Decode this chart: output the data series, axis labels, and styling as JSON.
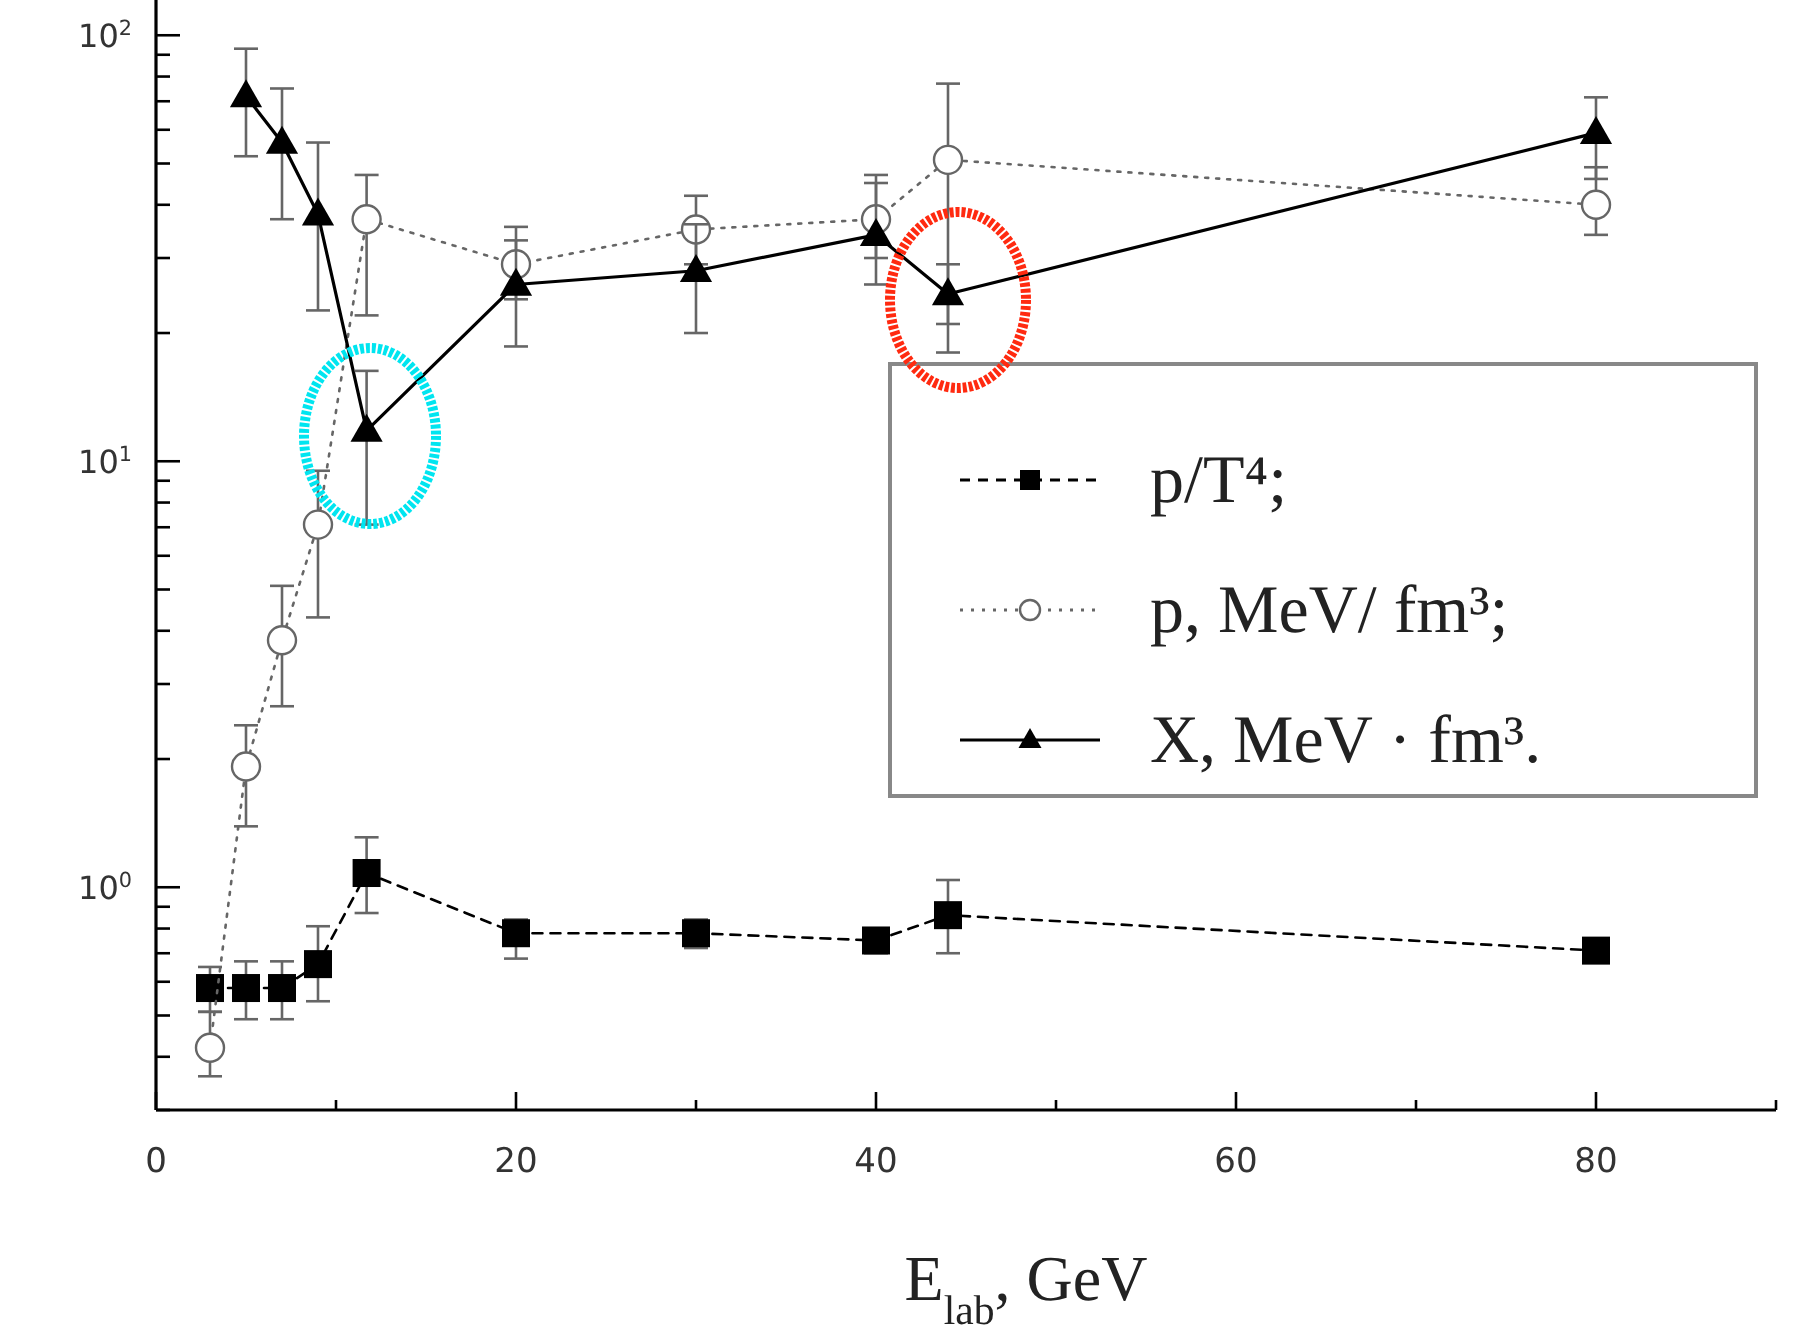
{
  "chart_data": {
    "type": "line",
    "xlabel": "E$_{lab}$, GeV",
    "xlim": [
      0,
      90
    ],
    "xticks": [
      0,
      {
        "value": 10,
        "label": null
      },
      20,
      {
        "value": 30,
        "label": null
      },
      40,
      {
        "value": 50,
        "label": null
      },
      60,
      {
        "value": 70,
        "label": null
      },
      80,
      {
        "value": 90,
        "label": null
      }
    ],
    "ylim": [
      0.3,
      121
    ],
    "yticks": [
      {
        "value": 0.3,
        "label": null
      },
      {
        "value": 0.4,
        "label": null
      },
      {
        "value": 0.5,
        "label": null
      },
      {
        "value": 0.6,
        "label": null
      },
      {
        "value": 0.7,
        "label": null
      },
      {
        "value": 0.8,
        "label": null
      },
      {
        "value": 0.9,
        "label": null
      },
      {
        "value": 1,
        "label": "10$^{0}$"
      },
      {
        "value": 2,
        "label": null
      },
      {
        "value": 3,
        "label": null
      },
      {
        "value": 4,
        "label": null
      },
      {
        "value": 5,
        "label": null
      },
      {
        "value": 6,
        "label": null
      },
      {
        "value": 7,
        "label": null
      },
      {
        "value": 8,
        "label": null
      },
      {
        "value": 9,
        "label": null
      },
      {
        "value": 10,
        "label": "10$^{1}$"
      },
      {
        "value": 20,
        "label": null
      },
      {
        "value": 30,
        "label": null
      },
      {
        "value": 40,
        "label": null
      },
      {
        "value": 50,
        "label": null
      },
      {
        "value": 60,
        "label": null
      },
      {
        "value": 70,
        "label": null
      },
      {
        "value": 80,
        "label": null
      },
      {
        "value": 90,
        "label": null
      },
      {
        "value": 100,
        "label": "10$^{2}$"
      }
    ],
    "log": "y",
    "grid": false,
    "legend": "right",
    "series": [
      {
        "name": "p/T⁴;",
        "color": "#000000",
        "marker": "square",
        "line_style": "dashed",
        "x": [
          3,
          5,
          7,
          9,
          11.7,
          20,
          30,
          40,
          44,
          80
        ],
        "values": [
          0.58,
          0.58,
          0.58,
          0.66,
          1.08,
          0.78,
          0.78,
          0.75,
          0.86,
          0.71
        ],
        "errors": [
          [
            0.51,
            0.65
          ],
          [
            0.49,
            0.67
          ],
          [
            0.49,
            0.67
          ],
          [
            0.54,
            0.81
          ],
          [
            0.87,
            1.31
          ],
          [
            0.68,
            0.84
          ],
          [
            0.72,
            0.84
          ],
          [
            0.7,
            0.8
          ],
          [
            0.7,
            1.04
          ],
          null
        ]
      },
      {
        "name": "p, MeV/ fm³;",
        "color": "#666666",
        "marker": "circle",
        "line_style": "dotted",
        "x": [
          3,
          5,
          7,
          9,
          11.7,
          20,
          30,
          40,
          44,
          80
        ],
        "values": [
          0.42,
          1.92,
          3.8,
          7.1,
          37,
          29,
          35,
          37,
          51,
          40
        ],
        "errors": [
          [
            0.36,
            0.51
          ],
          [
            1.39,
            2.4
          ],
          [
            2.66,
            5.1
          ],
          [
            4.3,
            9.5
          ],
          [
            22,
            47
          ],
          [
            24,
            33
          ],
          [
            29,
            42
          ],
          [
            30,
            47
          ],
          [
            18,
            77
          ],
          [
            34,
            49
          ]
        ]
      },
      {
        "name": "X, MeV · fm³.",
        "color": "#000000",
        "marker": "triangle",
        "line_style": "solid",
        "x": [
          5,
          7,
          9,
          11.7,
          20,
          30,
          40,
          44,
          80
        ],
        "values": [
          72,
          56,
          38,
          11.8,
          26,
          28,
          34,
          24.7,
          59
        ],
        "errors": [
          [
            52,
            93
          ],
          [
            37,
            75
          ],
          [
            22.6,
            56
          ],
          [
            7.1,
            16.3
          ],
          [
            18.6,
            35.5
          ],
          [
            20,
            36
          ],
          [
            26,
            45
          ],
          [
            21,
            29
          ],
          [
            46,
            71.5
          ]
        ]
      }
    ]
  }
}
